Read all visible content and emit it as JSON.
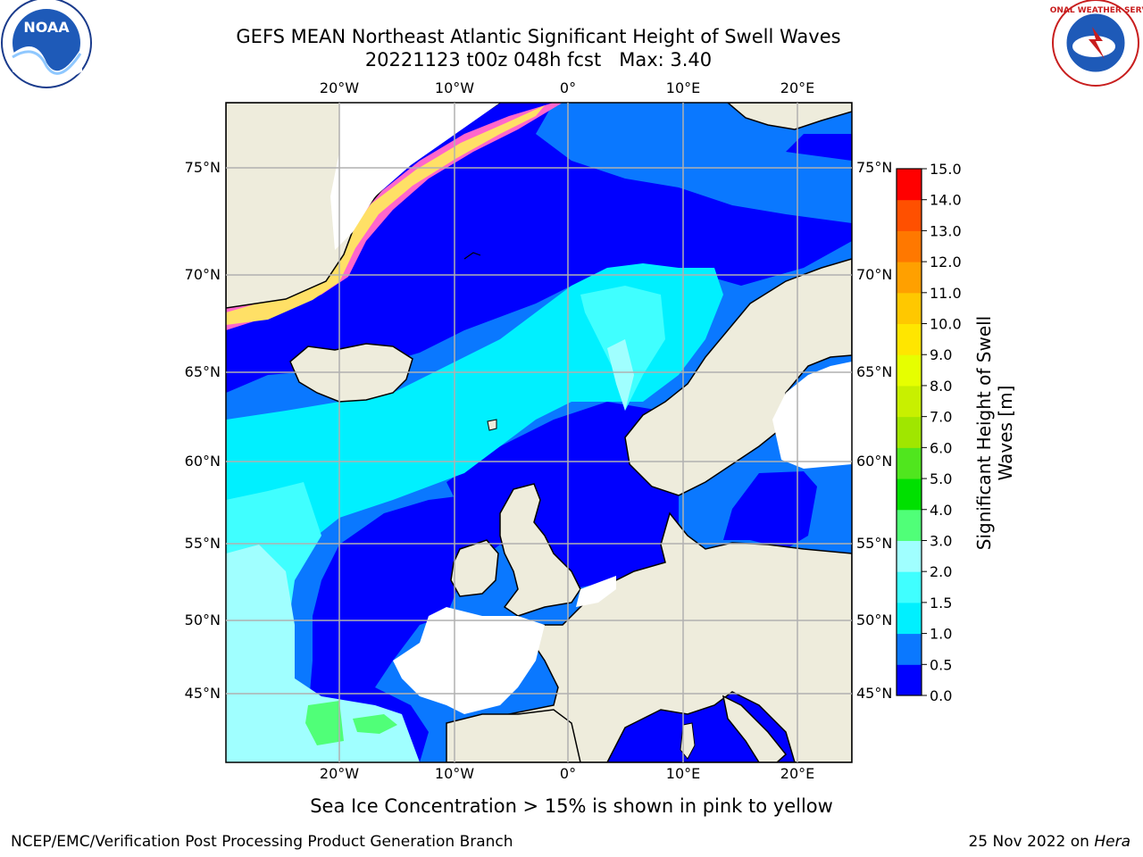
{
  "header": {
    "title_line1": "GEFS MEAN Northeast Atlantic Significant Height of Swell Waves",
    "title_line2": "20221123 t00z 048h fcst   Max: 3.40"
  },
  "map": {
    "lon_ticks_top": [
      "20°W",
      "10°W",
      "0°",
      "10°E",
      "20°E"
    ],
    "lon_ticks_bottom": [
      "20°W",
      "10°W",
      "0°",
      "10°E",
      "20°E"
    ],
    "lat_ticks_left": [
      "75°N",
      "70°N",
      "65°N",
      "60°N",
      "55°N",
      "50°N",
      "45°N"
    ],
    "lat_ticks_right": [
      "75°N",
      "70°N",
      "65°N",
      "60°N",
      "55°N",
      "50°N",
      "45°N"
    ],
    "colors": {
      "land": "#eeecdc",
      "ice_edge": "#ff66cc",
      "grid": "#b0b0b0"
    }
  },
  "colorbar": {
    "label_line1": "Significant Height of Swell",
    "label_line2": "Waves [m]",
    "levels": [
      "0.0",
      "0.5",
      "1.0",
      "1.5",
      "2.0",
      "3.0",
      "4.0",
      "5.0",
      "6.0",
      "7.0",
      "8.0",
      "9.0",
      "10.0",
      "11.0",
      "12.0",
      "13.0",
      "14.0",
      "15.0"
    ],
    "colors": [
      "#0000ff",
      "#0a78ff",
      "#00f0ff",
      "#40ffff",
      "#a0ffff",
      "#50ff78",
      "#00e000",
      "#50e61e",
      "#a0e600",
      "#c8f000",
      "#e6ff00",
      "#ffe600",
      "#ffc800",
      "#ffa000",
      "#ff7800",
      "#ff5000",
      "#ff0000"
    ]
  },
  "footer": {
    "note": "Sea Ice Concentration > 15% is shown in pink to yellow",
    "credit": "NCEP/EMC/Verification Post Processing Product Generation Branch",
    "date_prefix": "25 Nov 2022 on ",
    "machine": "Hera"
  },
  "logos": {
    "left": "NOAA",
    "right": "NATIONAL WEATHER SERVICE"
  }
}
